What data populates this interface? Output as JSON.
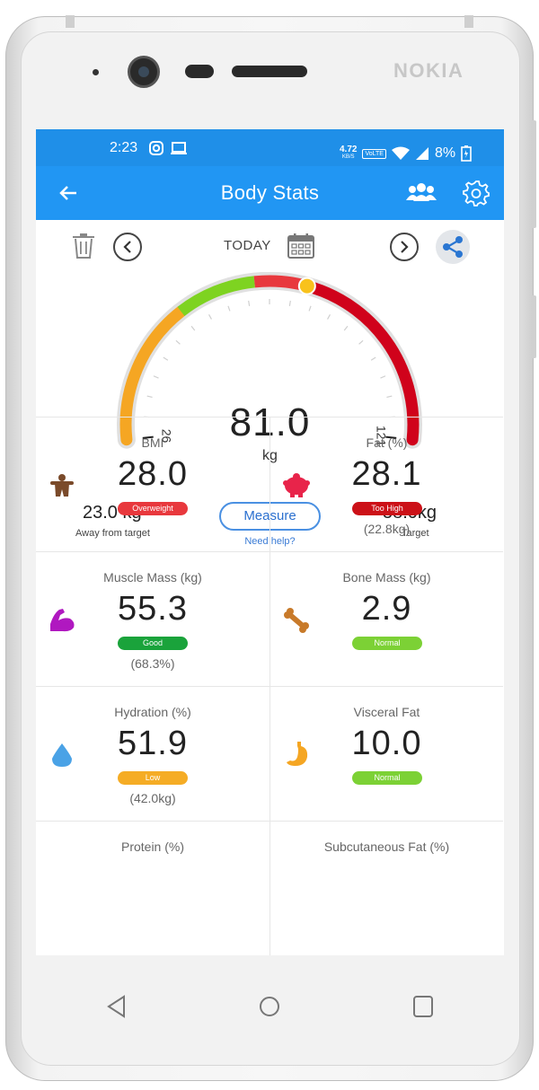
{
  "device": {
    "brand": "NOKIA"
  },
  "status_bar": {
    "time": "2:23",
    "net_speed_value": "4.72",
    "net_speed_unit": "KB/S",
    "volte": "VoLTE",
    "battery": "8%"
  },
  "app_bar": {
    "title": "Body Stats",
    "icons": [
      "back-arrow-icon",
      "users-icon",
      "gear-icon"
    ]
  },
  "date_controls": {
    "label": "TODAY",
    "icons": [
      "trash-icon",
      "chevron-left-icon",
      "calendar-icon",
      "chevron-right-icon",
      "share-icon"
    ]
  },
  "gauge": {
    "value": "81.0",
    "unit": "kg",
    "min_label": "26",
    "max_label": "121",
    "min": 26,
    "max": 121,
    "current": 81.0
  },
  "summary": {
    "away_value": "23.0 kg",
    "away_label": "Away from target",
    "measure_button": "Measure",
    "help_link": "Need help?",
    "target_value": "58.0kg",
    "target_label": "Target"
  },
  "metrics": [
    {
      "label": "BMI",
      "value": "28.0",
      "badge": "Overweight",
      "badge_color": "#e8383d",
      "sub": "",
      "icon": "body-icon"
    },
    {
      "label": "Fat (%)",
      "value": "28.1",
      "badge": "Too High",
      "badge_color": "#cc1118",
      "sub": "(22.8kg)",
      "icon": "fat-pig-icon"
    },
    {
      "label": "Muscle Mass (kg)",
      "value": "55.3",
      "badge": "Good",
      "badge_color": "#1aa33b",
      "sub": "(68.3%)",
      "icon": "muscle-icon"
    },
    {
      "label": "Bone Mass (kg)",
      "value": "2.9",
      "badge": "Normal",
      "badge_color": "#7cd135",
      "sub": "",
      "icon": "bone-icon"
    },
    {
      "label": "Hydration (%)",
      "value": "51.9",
      "badge": "Low",
      "badge_color": "#f5ac25",
      "sub": "(42.0kg)",
      "icon": "water-drop-icon"
    },
    {
      "label": "Visceral Fat",
      "value": "10.0",
      "badge": "Normal",
      "badge_color": "#7cd135",
      "sub": "",
      "icon": "stomach-icon"
    },
    {
      "label": "Protein (%)",
      "value": "",
      "badge": "",
      "badge_color": "",
      "sub": "",
      "icon": ""
    },
    {
      "label": "Subcutaneous Fat (%)",
      "value": "",
      "badge": "",
      "badge_color": "",
      "sub": "",
      "icon": ""
    }
  ],
  "colors": {
    "primary": "#2196f3",
    "status_bar": "#1f8fe8",
    "gauge_orange": "#f5a623",
    "gauge_green": "#7ed321",
    "gauge_red": "#e8383d",
    "gauge_darkred": "#d0021b",
    "marker": "#f8c21c"
  }
}
